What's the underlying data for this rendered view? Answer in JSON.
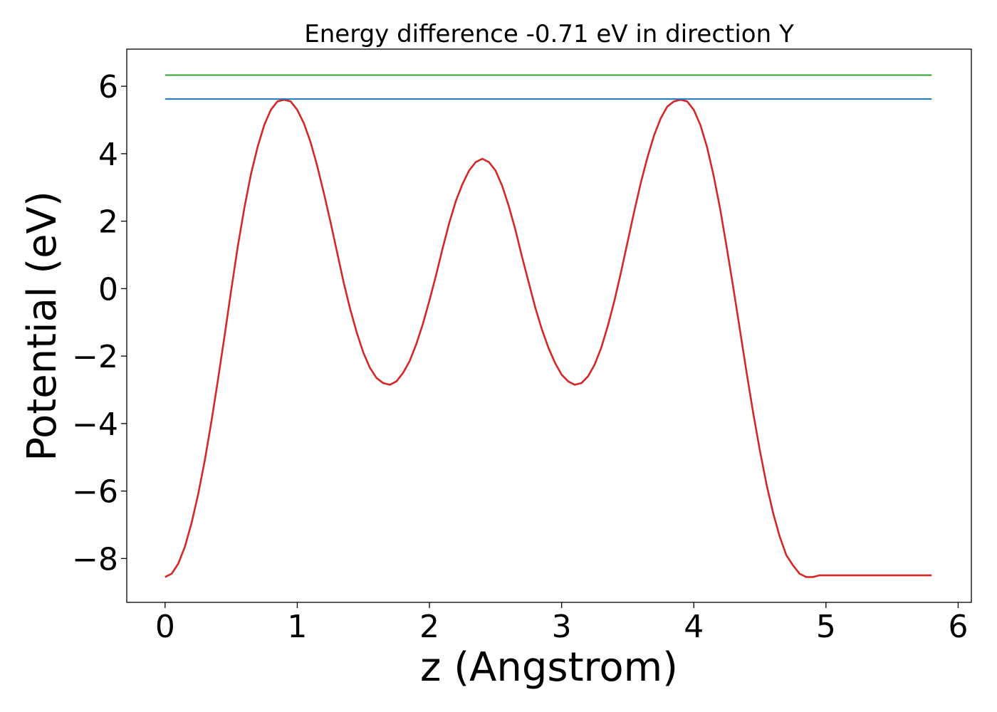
{
  "chart_data": {
    "type": "line",
    "title": "Energy difference -0.71 eV in direction Y",
    "xlabel": "z (Angstrom)",
    "ylabel": "Potential (eV)",
    "xlim": [
      -0.29,
      6.1
    ],
    "ylim": [
      -9.3,
      7.1
    ],
    "xticks": [
      0,
      1,
      2,
      3,
      4,
      5,
      6
    ],
    "xtick_labels": [
      "0",
      "1",
      "2",
      "3",
      "4",
      "5",
      "6"
    ],
    "yticks": [
      -8,
      -6,
      -4,
      -2,
      0,
      2,
      4,
      6
    ],
    "ytick_labels": [
      "−8",
      "−6",
      "−4",
      "−2",
      "0",
      "2",
      "4",
      "6"
    ],
    "grid": false,
    "series": [
      {
        "color": "#d62728",
        "x": [
          0,
          0.05,
          0.1,
          0.15,
          0.2,
          0.25,
          0.3,
          0.35,
          0.4,
          0.45,
          0.5,
          0.55,
          0.6,
          0.65,
          0.7,
          0.75,
          0.8,
          0.85,
          0.9,
          0.95,
          1.0,
          1.05,
          1.1,
          1.15,
          1.2,
          1.25,
          1.3,
          1.35,
          1.4,
          1.45,
          1.5,
          1.55,
          1.6,
          1.65,
          1.7,
          1.75,
          1.8,
          1.85,
          1.9,
          1.95,
          2.0,
          2.05,
          2.1,
          2.15,
          2.2,
          2.25,
          2.3,
          2.35,
          2.4,
          2.45,
          2.5,
          2.55,
          2.6,
          2.65,
          2.7,
          2.75,
          2.8,
          2.85,
          2.9,
          2.95,
          3.0,
          3.05,
          3.1,
          3.15,
          3.2,
          3.25,
          3.3,
          3.35,
          3.4,
          3.45,
          3.5,
          3.55,
          3.6,
          3.65,
          3.7,
          3.75,
          3.8,
          3.85,
          3.9,
          3.95,
          4.0,
          4.05,
          4.1,
          4.15,
          4.2,
          4.25,
          4.3,
          4.35,
          4.4,
          4.45,
          4.5,
          4.55,
          4.6,
          4.65,
          4.7,
          4.75,
          4.8,
          4.85,
          4.9,
          4.95,
          5.0,
          5.05,
          5.1,
          5.15,
          5.2,
          5.25,
          5.3,
          5.35,
          5.4,
          5.45,
          5.5,
          5.55,
          5.6,
          5.65,
          5.7,
          5.75,
          5.8
        ],
        "y": [
          -8.55,
          -8.45,
          -8.15,
          -7.65,
          -6.95,
          -6.1,
          -5.1,
          -3.95,
          -2.7,
          -1.4,
          -0.05,
          1.25,
          2.4,
          3.4,
          4.2,
          4.85,
          5.3,
          5.55,
          5.6,
          5.55,
          5.3,
          4.9,
          4.35,
          3.65,
          2.85,
          2.0,
          1.1,
          0.2,
          -0.6,
          -1.3,
          -1.9,
          -2.35,
          -2.65,
          -2.8,
          -2.85,
          -2.75,
          -2.5,
          -2.15,
          -1.65,
          -1.05,
          -0.35,
          0.4,
          1.2,
          1.95,
          2.6,
          3.1,
          3.5,
          3.75,
          3.85,
          3.75,
          3.5,
          3.05,
          2.45,
          1.75,
          0.95,
          0.2,
          -0.55,
          -1.2,
          -1.75,
          -2.2,
          -2.55,
          -2.75,
          -2.85,
          -2.8,
          -2.6,
          -2.25,
          -1.75,
          -1.1,
          -0.35,
          0.5,
          1.4,
          2.3,
          3.15,
          3.9,
          4.55,
          5.05,
          5.4,
          5.55,
          5.6,
          5.55,
          5.3,
          4.85,
          4.2,
          3.35,
          2.35,
          1.2,
          0.0,
          -1.25,
          -2.5,
          -3.7,
          -4.8,
          -5.8,
          -6.65,
          -7.35,
          -7.9,
          -8.2,
          -8.45,
          -8.55,
          -8.55,
          -8.5,
          -8.5,
          -8.5,
          -8.5,
          -8.5,
          -8.5,
          -8.5,
          -8.5,
          -8.5,
          -8.5,
          -8.5,
          -8.5,
          -8.5,
          -8.5,
          -8.5,
          -8.5,
          -8.5,
          -8.5
        ]
      },
      {
        "color": "#1f77b4",
        "x": [
          0,
          5.8
        ],
        "y": [
          5.62,
          5.62
        ]
      },
      {
        "color": "#2ca02c",
        "x": [
          0,
          5.8
        ],
        "y": [
          6.33,
          6.33
        ]
      }
    ]
  }
}
